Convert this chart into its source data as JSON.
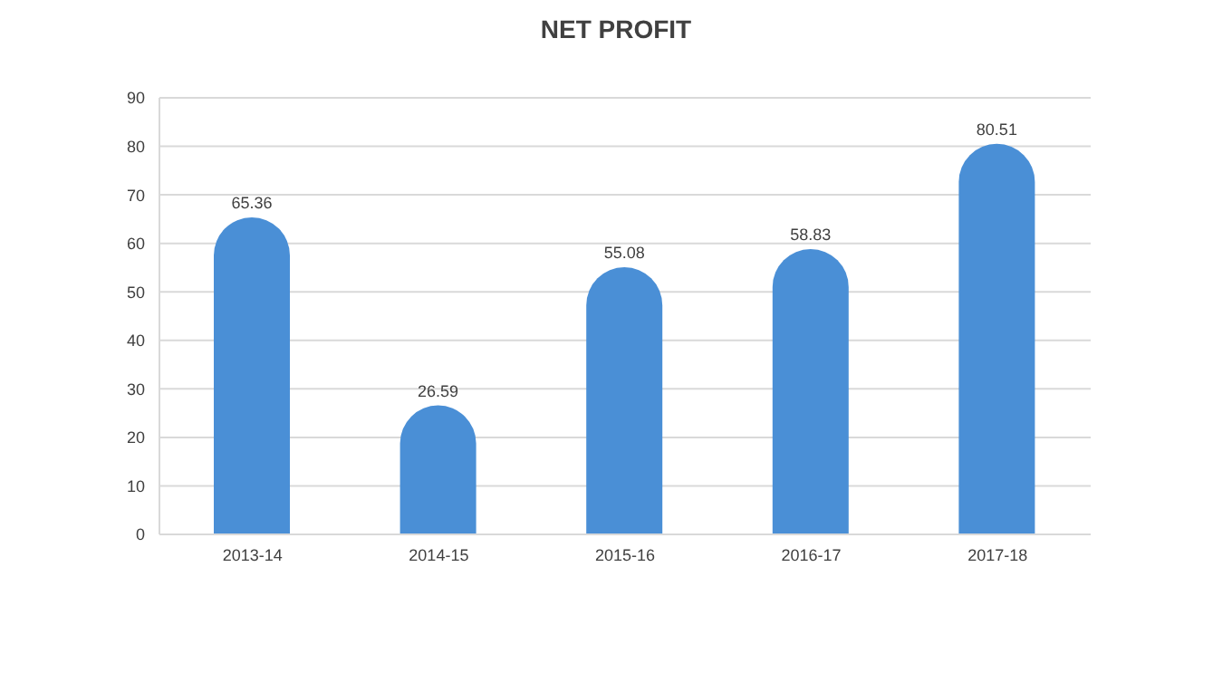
{
  "chart_data": {
    "type": "bar",
    "title": "NET PROFIT",
    "categories": [
      "2013-14",
      "2014-15",
      "2015-16",
      "2016-17",
      "2017-18"
    ],
    "values": [
      65.36,
      26.59,
      55.08,
      58.83,
      80.51
    ],
    "color": "#4a8fd6",
    "data_labels": true,
    "grid": "y",
    "ylim": [
      0,
      90
    ],
    "yticks": [
      0,
      10,
      20,
      30,
      40,
      50,
      60,
      70,
      80,
      90
    ]
  }
}
